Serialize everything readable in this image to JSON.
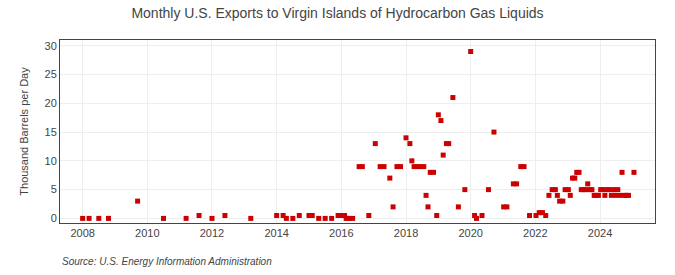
{
  "chart_data": {
    "type": "scatter",
    "title": "Monthly U.S. Exports to Virgin Islands of Hydrocarbon Gas Liquids",
    "y_label": "Thousand Barrels per Day",
    "annotations": [
      "Source: U.S. Energy Information Administration"
    ],
    "x": [
      2008.0,
      2008.2,
      2008.5,
      2008.8,
      2009.7,
      2010.5,
      2011.2,
      2011.6,
      2012.0,
      2012.4,
      2013.2,
      2014.0,
      2014.2,
      2014.3,
      2014.5,
      2014.7,
      2015.0,
      2015.1,
      2015.3,
      2015.5,
      2015.7,
      2015.9,
      2016.0,
      2016.1,
      2016.15,
      2016.25,
      2016.35,
      2016.55,
      2016.65,
      2016.85,
      2017.05,
      2017.2,
      2017.32,
      2017.5,
      2017.6,
      2017.72,
      2017.83,
      2018.0,
      2018.12,
      2018.18,
      2018.25,
      2018.35,
      2018.45,
      2018.55,
      2018.62,
      2018.68,
      2018.75,
      2018.85,
      2018.95,
      2019.0,
      2019.08,
      2019.15,
      2019.25,
      2019.32,
      2019.45,
      2019.62,
      2019.82,
      2020.0,
      2020.12,
      2020.18,
      2020.35,
      2020.55,
      2020.72,
      2021.02,
      2021.12,
      2021.32,
      2021.42,
      2021.55,
      2021.65,
      2021.82,
      2022.02,
      2022.12,
      2022.22,
      2022.32,
      2022.42,
      2022.52,
      2022.62,
      2022.68,
      2022.75,
      2022.85,
      2022.92,
      2023.02,
      2023.08,
      2023.15,
      2023.22,
      2023.28,
      2023.35,
      2023.42,
      2023.48,
      2023.55,
      2023.62,
      2023.68,
      2023.75,
      2023.82,
      2023.88,
      2023.95,
      2024.02,
      2024.08,
      2024.15,
      2024.22,
      2024.28,
      2024.35,
      2024.42,
      2024.48,
      2024.55,
      2024.62,
      2024.68,
      2024.75,
      2024.82,
      2024.88,
      2025.05
    ],
    "values": [
      0.0,
      0.0,
      0.0,
      0.0,
      3.0,
      0.0,
      0.0,
      0.5,
      0.0,
      0.5,
      0.0,
      0.5,
      0.5,
      0.0,
      0.0,
      0.5,
      0.5,
      0.5,
      0.0,
      0.0,
      0.0,
      0.5,
      0.5,
      0.5,
      0.0,
      0.0,
      0.0,
      9.0,
      9.0,
      0.5,
      13.0,
      9.0,
      9.0,
      7.0,
      2.0,
      9.0,
      9.0,
      14.0,
      13.0,
      10.0,
      9.0,
      9.0,
      9.0,
      9.0,
      4.0,
      2.0,
      8.0,
      8.0,
      0.5,
      18.0,
      17.0,
      11.0,
      13.0,
      13.0,
      21.0,
      2.0,
      5.0,
      29.0,
      0.5,
      0.0,
      0.5,
      5.0,
      15.0,
      2.0,
      2.0,
      6.0,
      6.0,
      9.0,
      9.0,
      0.5,
      0.5,
      1.0,
      1.0,
      0.5,
      4.0,
      5.0,
      5.0,
      4.0,
      3.0,
      3.0,
      5.0,
      5.0,
      4.0,
      7.0,
      7.0,
      8.0,
      8.0,
      5.0,
      5.0,
      5.0,
      6.0,
      5.0,
      5.0,
      4.0,
      4.0,
      4.0,
      5.0,
      5.0,
      4.0,
      5.0,
      5.0,
      4.0,
      5.0,
      4.0,
      5.0,
      4.0,
      8.0,
      4.0,
      4.0,
      4.0,
      8.0
    ],
    "color": "#cc0000",
    "marker": "square",
    "xlim": [
      2007.3,
      2025.7
    ],
    "ylim": [
      -0.8,
      31
    ],
    "xticks": [
      2008,
      2010,
      2012,
      2014,
      2016,
      2018,
      2020,
      2022,
      2024
    ],
    "yticks": [
      0,
      5,
      10,
      15,
      20,
      25,
      30
    ],
    "grid": true
  }
}
